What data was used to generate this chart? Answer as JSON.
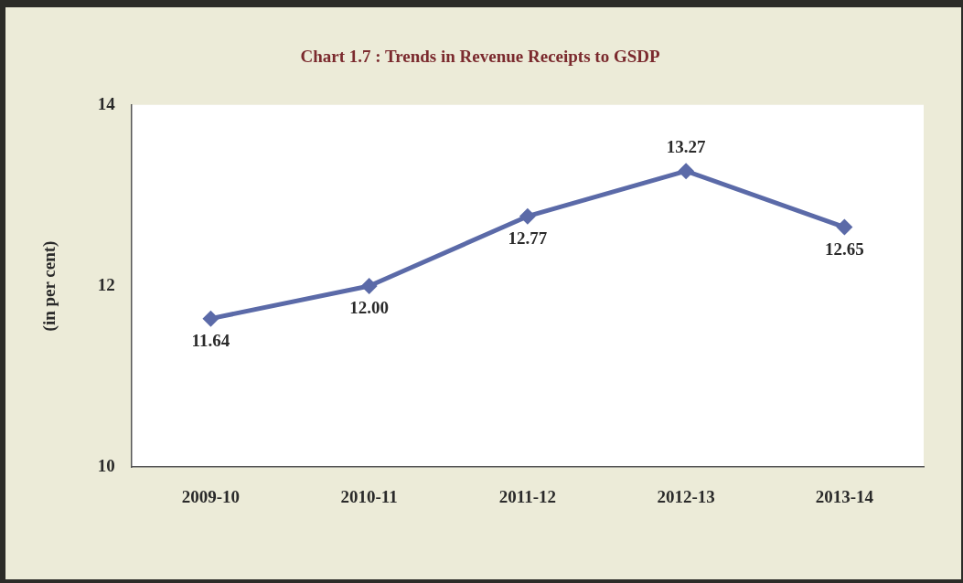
{
  "chart_data": {
    "type": "line",
    "title": "Chart 1.7 : Trends in Revenue Receipts to GSDP",
    "ylabel": "(in per cent)",
    "categories": [
      "2009-10",
      "2010-11",
      "2011-12",
      "2012-13",
      "2013-14"
    ],
    "series": [
      {
        "color": "#5b6aa8",
        "values": [
          11.64,
          12.0,
          12.77,
          13.27,
          12.65
        ],
        "value_labels": [
          "11.64",
          "12.00",
          "12.77",
          "13.27",
          "12.65"
        ]
      }
    ],
    "ylim": [
      10,
      14
    ],
    "yticks": [
      10,
      12,
      14
    ],
    "grid": false,
    "legend": false,
    "marker": "diamond",
    "line_style": "solid"
  }
}
